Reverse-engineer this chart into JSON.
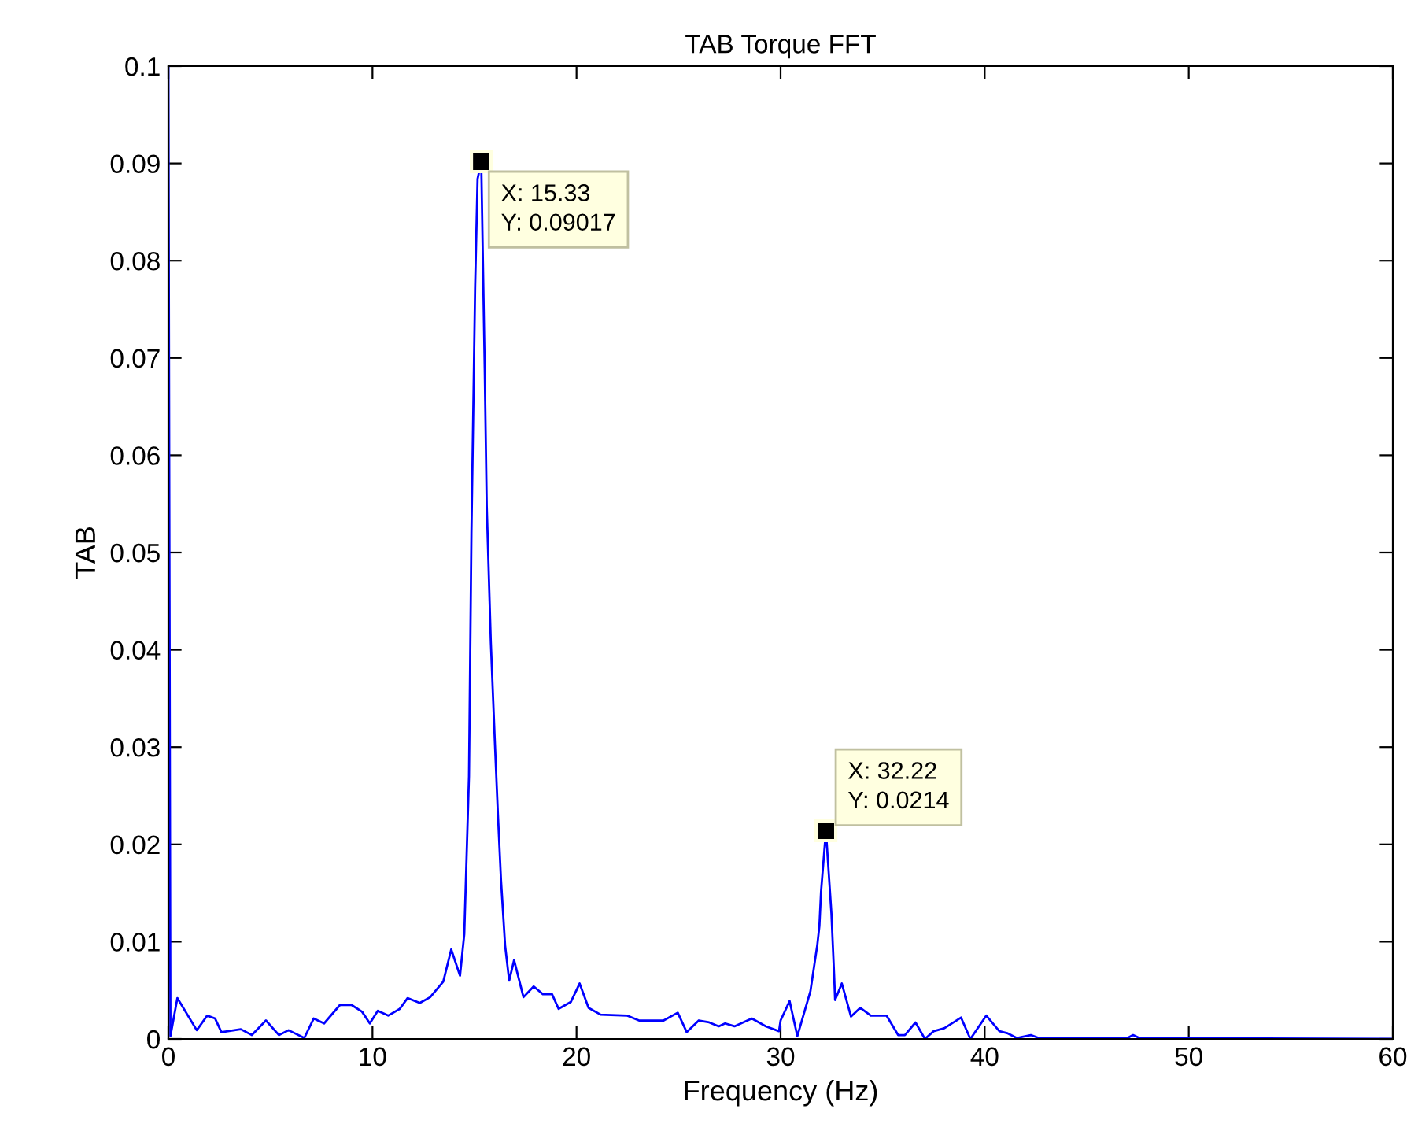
{
  "chart_data": {
    "type": "line",
    "title": "TAB Torque FFT",
    "xlabel": "Frequency (Hz)",
    "ylabel": "TAB",
    "xlim": [
      0,
      60
    ],
    "ylim": [
      0,
      0.1
    ],
    "xticks": [
      0,
      10,
      20,
      30,
      40,
      50,
      60
    ],
    "yticks": [
      0,
      0.01,
      0.02,
      0.03,
      0.04,
      0.05,
      0.06,
      0.07,
      0.08,
      0.09,
      0.1
    ],
    "grid": false,
    "legend": false,
    "marker": "none",
    "line_style": "solid",
    "series": [
      {
        "color": "#0000ff",
        "x": [
          0,
          0.1,
          0.44,
          1.39,
          1.9,
          2.29,
          2.6,
          3.55,
          4.09,
          4.78,
          5.42,
          5.89,
          6.66,
          7.12,
          7.63,
          8.41,
          8.97,
          9.49,
          9.87,
          10.26,
          10.77,
          11.34,
          11.72,
          12.32,
          12.83,
          13.47,
          13.86,
          14.29,
          14.5,
          14.73,
          14.85,
          15.03,
          15.15,
          15.33,
          15.5,
          15.6,
          15.8,
          16.0,
          16.15,
          16.3,
          16.5,
          16.7,
          16.94,
          17.4,
          17.9,
          18.35,
          18.8,
          19.12,
          19.72,
          20.15,
          20.59,
          21.18,
          22.47,
          23.06,
          24.27,
          24.96,
          25.4,
          25.99,
          26.5,
          26.97,
          27.28,
          27.74,
          28.59,
          29.28,
          29.92,
          30.0,
          30.44,
          30.82,
          31.46,
          31.8,
          31.9,
          31.98,
          32.22,
          32.49,
          32.62,
          32.67,
          33.0,
          33.45,
          33.9,
          34.42,
          35.19,
          35.76,
          36.09,
          36.61,
          37.07,
          37.5,
          38.02,
          38.84,
          39.3,
          40.08,
          40.72,
          41.1,
          41.57,
          42.26,
          42.65,
          47.0,
          47.27,
          47.58,
          60
        ],
        "values": [
          0.1,
          0.0003,
          0.0042,
          0.0009,
          0.0024,
          0.0021,
          0.0007,
          0.001,
          0.0004,
          0.0019,
          0.0004,
          0.0009,
          0.0001,
          0.0021,
          0.0016,
          0.0035,
          0.0035,
          0.0028,
          0.0016,
          0.0029,
          0.0024,
          0.0031,
          0.0042,
          0.0037,
          0.0043,
          0.0059,
          0.0092,
          0.0065,
          0.0108,
          0.027,
          0.052,
          0.0773,
          0.0884,
          0.09017,
          0.069,
          0.0548,
          0.0408,
          0.0304,
          0.023,
          0.0163,
          0.0096,
          0.006,
          0.0081,
          0.0043,
          0.0054,
          0.0046,
          0.0046,
          0.0031,
          0.0038,
          0.0057,
          0.0032,
          0.0025,
          0.0024,
          0.0019,
          0.0019,
          0.0027,
          0.0007,
          0.0019,
          0.0017,
          0.0013,
          0.0016,
          0.0013,
          0.0021,
          0.0013,
          0.0008,
          0.0019,
          0.0039,
          0.0003,
          0.0049,
          0.0097,
          0.0116,
          0.0151,
          0.0214,
          0.0129,
          0.0067,
          0.004,
          0.0057,
          0.0023,
          0.0032,
          0.0024,
          0.0024,
          0.0004,
          0.0004,
          0.0017,
          0,
          0.0008,
          0.0011,
          0.0022,
          0,
          0.0024,
          0.0008,
          0.0006,
          0.0001,
          0.0004,
          0.0001,
          0.0001,
          0.0004,
          0.0001,
          0
        ]
      }
    ],
    "annotations": [
      {
        "text": "X: 15.33\nY: 0.09017",
        "x": 15.33,
        "y": 0.09017
      },
      {
        "text": "X: 32.22\nY: 0.0214",
        "x": 32.22,
        "y": 0.0214
      }
    ]
  }
}
